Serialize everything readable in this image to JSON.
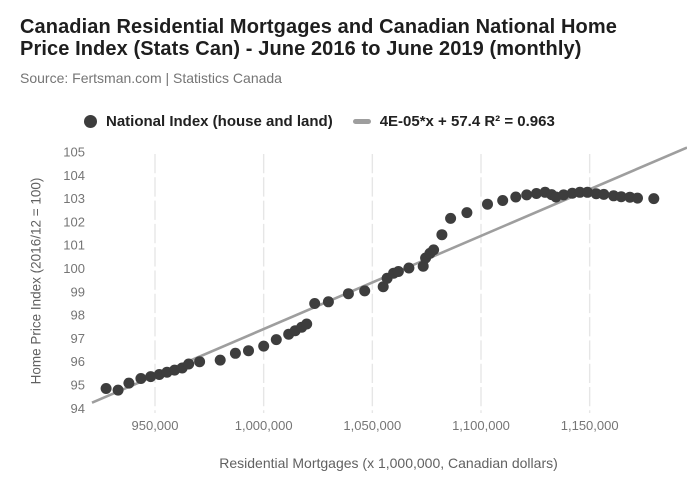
{
  "header": {
    "title_lines": [
      "Canadian Residential Mortgages and Canadian National Home",
      "Price Index (Stats Can) - June 2016 to June 2019 (monthly)"
    ],
    "source": "Source: Fertsman.com | Statistics Canada"
  },
  "legend": {
    "series_label": "National Index (house and land)",
    "trend_label": "4E-05*x + 57.4 R² = 0.963"
  },
  "chart_data": {
    "type": "scatter",
    "title": "Canadian Residential Mortgages and Canadian National Home Price Index (Stats Can) - June 2016 to June 2019 (monthly)",
    "xlabel": "Residential Mortgages (x 1,000,000, Canadian dollars)",
    "ylabel": "Home Price Index (2016/12 = 100)",
    "xlim": [
      920000,
      1195000
    ],
    "ylim": [
      94,
      105
    ],
    "grid": "vertical-only",
    "legend_position": "top",
    "x_ticks": [
      {
        "value": 950000,
        "label": "950,000"
      },
      {
        "value": 1000000,
        "label": "1,000,000"
      },
      {
        "value": 1050000,
        "label": "1,050,000"
      },
      {
        "value": 1100000,
        "label": "1,100,000"
      },
      {
        "value": 1150000,
        "label": "1,150,000"
      }
    ],
    "y_ticks": [
      94,
      95,
      96,
      97,
      98,
      99,
      100,
      101,
      102,
      103,
      104,
      105
    ],
    "series": [
      {
        "name": "National Index (house and land)",
        "points": [
          [
            927500,
            94.85
          ],
          [
            933000,
            94.78
          ],
          [
            938000,
            95.08
          ],
          [
            943500,
            95.28
          ],
          [
            948000,
            95.36
          ],
          [
            952000,
            95.45
          ],
          [
            955500,
            95.55
          ],
          [
            959000,
            95.64
          ],
          [
            962500,
            95.73
          ],
          [
            965500,
            95.9
          ],
          [
            970500,
            96.0
          ],
          [
            980000,
            96.07
          ],
          [
            987000,
            96.36
          ],
          [
            993000,
            96.47
          ],
          [
            1000000,
            96.67
          ],
          [
            1005800,
            96.95
          ],
          [
            1011500,
            97.18
          ],
          [
            1014500,
            97.33
          ],
          [
            1017500,
            97.48
          ],
          [
            1019800,
            97.62
          ],
          [
            1023500,
            98.5
          ],
          [
            1029800,
            98.57
          ],
          [
            1039000,
            98.92
          ],
          [
            1046500,
            99.04
          ],
          [
            1055000,
            99.22
          ],
          [
            1056800,
            99.58
          ],
          [
            1059800,
            99.8
          ],
          [
            1062000,
            99.87
          ],
          [
            1066800,
            100.02
          ],
          [
            1073400,
            100.1
          ],
          [
            1074500,
            100.45
          ],
          [
            1076500,
            100.65
          ],
          [
            1078200,
            100.8
          ],
          [
            1082000,
            101.45
          ],
          [
            1086000,
            102.15
          ],
          [
            1093500,
            102.4
          ],
          [
            1103000,
            102.76
          ],
          [
            1110000,
            102.92
          ],
          [
            1116000,
            103.07
          ],
          [
            1121000,
            103.16
          ],
          [
            1125500,
            103.22
          ],
          [
            1129500,
            103.27
          ],
          [
            1132500,
            103.17
          ],
          [
            1134500,
            103.07
          ],
          [
            1138000,
            103.16
          ],
          [
            1142000,
            103.23
          ],
          [
            1145500,
            103.27
          ],
          [
            1149000,
            103.27
          ],
          [
            1153000,
            103.21
          ],
          [
            1156500,
            103.18
          ],
          [
            1161000,
            103.12
          ],
          [
            1164500,
            103.08
          ],
          [
            1168500,
            103.06
          ],
          [
            1172000,
            103.02
          ],
          [
            1179500,
            103.0
          ]
        ]
      }
    ],
    "trend": {
      "label": "4E-05*x + 57.4 R² = 0.963",
      "slope": 4e-05,
      "intercept": 57.4,
      "r_squared": 0.963
    },
    "colors": {
      "point": "#3d3d3d",
      "trend": "#9e9e9e",
      "grid": "#e6e6e6",
      "tick_text": "#757575",
      "axis_title_text": "#616161",
      "title_text": "#1e1e1e",
      "source_text": "#757575"
    }
  }
}
